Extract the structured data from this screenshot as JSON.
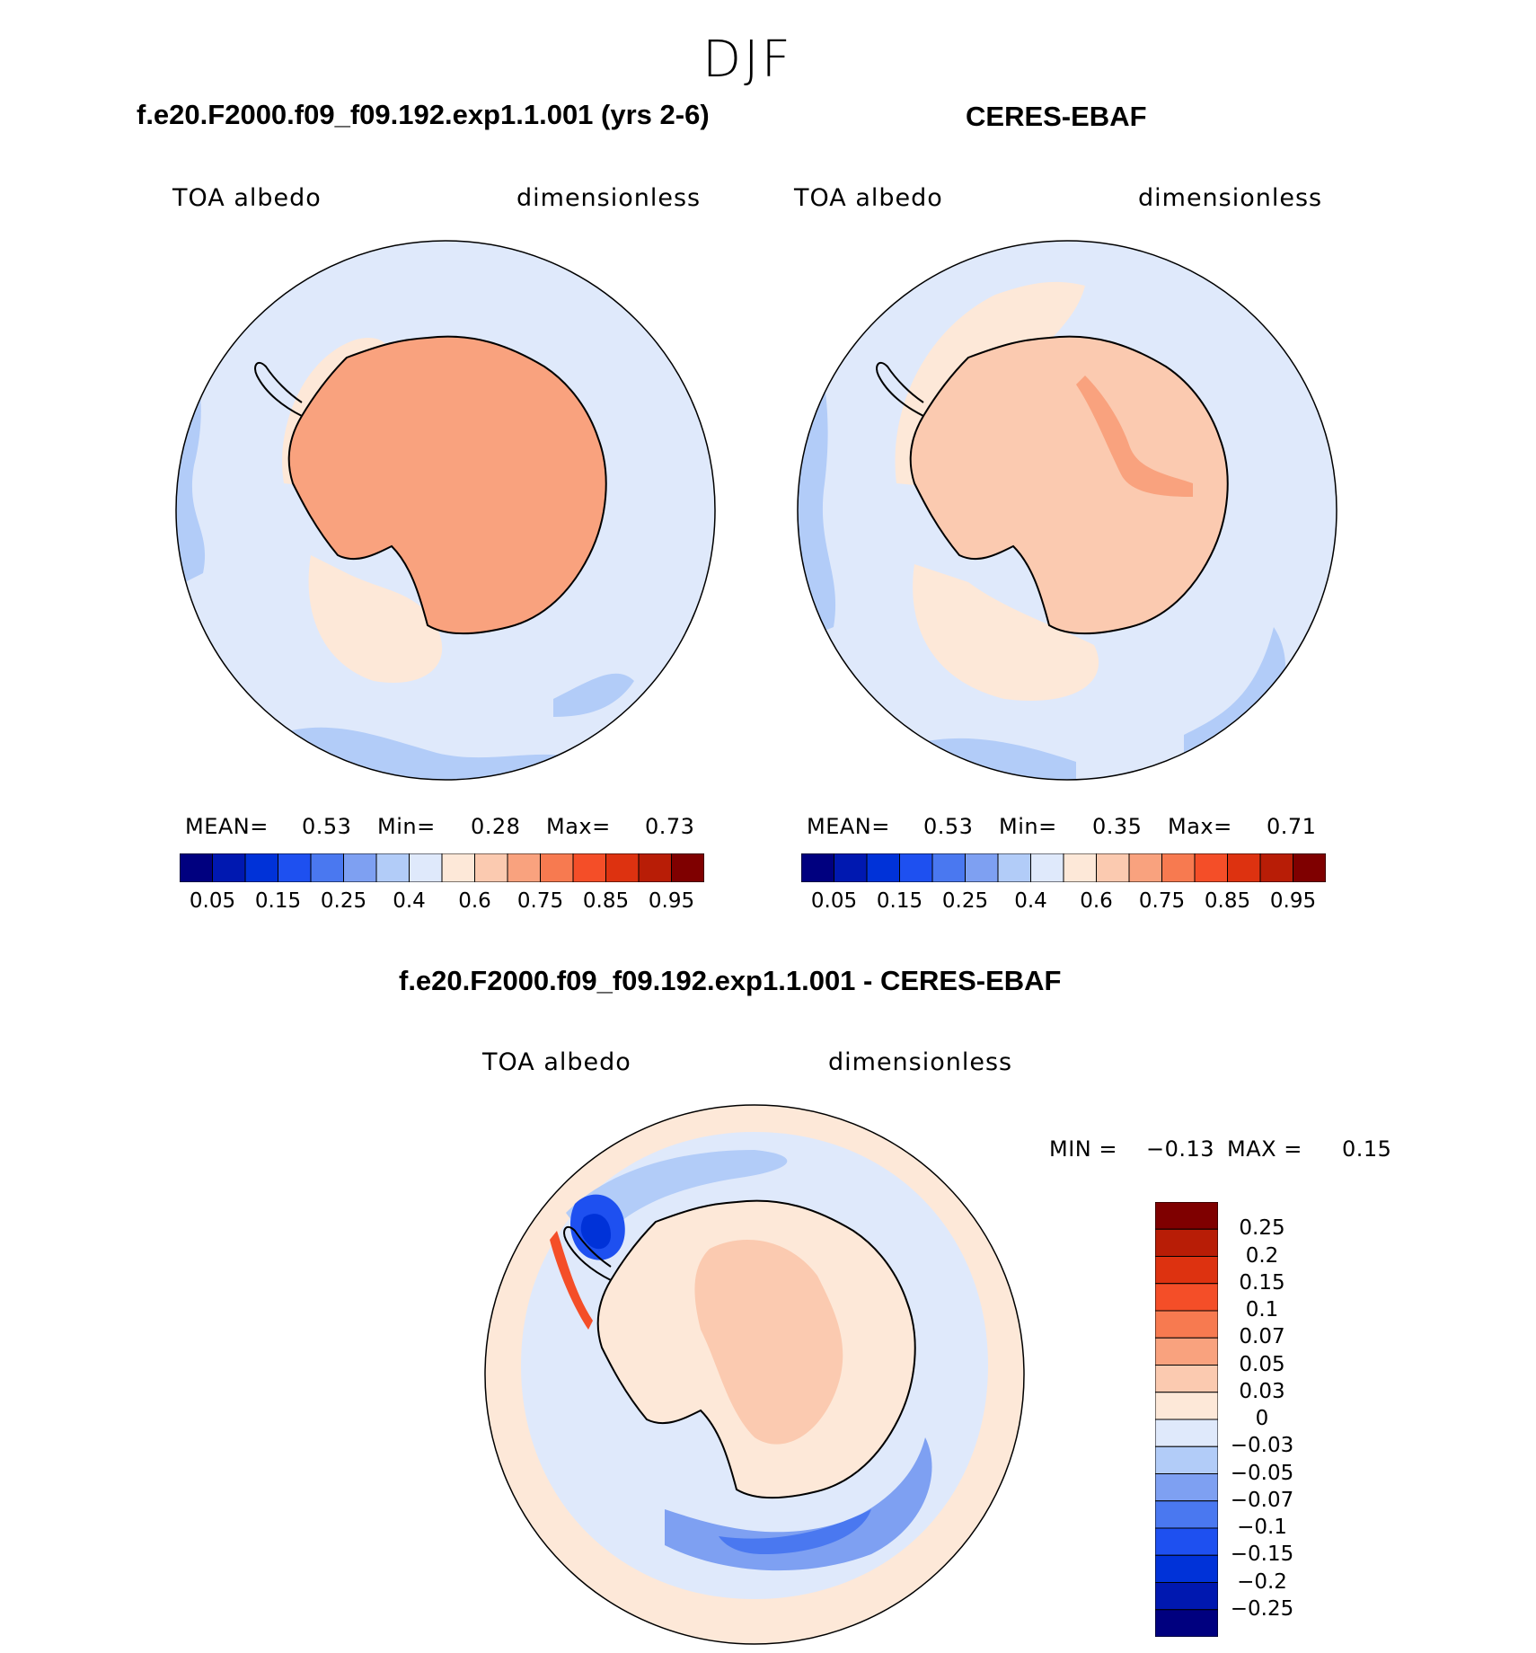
{
  "figure": {
    "season": "DJF",
    "colors": {
      "seq": [
        "#00007f",
        "#0018b0",
        "#0032d8",
        "#1e50f0",
        "#4a78f0",
        "#7ea0f2",
        "#b2ccf8",
        "#dfe9fb",
        "#fde8d8",
        "#fbcab0",
        "#f9a27e",
        "#f77a50",
        "#f44e28",
        "#dd3210",
        "#b81d06",
        "#7f0000"
      ],
      "diff": [
        "#7f0000",
        "#b81d06",
        "#dd3210",
        "#f44e28",
        "#f77a50",
        "#f9a27e",
        "#fbcab0",
        "#fde8d8",
        "#dfe9fb",
        "#b2ccf8",
        "#7ea0f2",
        "#4a78f0",
        "#1e50f0",
        "#0032d8",
        "#0018b0",
        "#00007f"
      ],
      "land_outline": "#000000"
    }
  },
  "panels": {
    "model": {
      "title": "f.e20.F2000.f09_f09.192.exp1.1.001 (yrs 2-6)",
      "variable": "TOA albedo",
      "units": "dimensionless",
      "mean_label": "MEAN=",
      "mean": "0.53",
      "min_label": "Min=",
      "min": "0.28",
      "max_label": "Max=",
      "max": "0.73"
    },
    "obs": {
      "title": "CERES-EBAF",
      "variable": "TOA albedo",
      "units": "dimensionless",
      "mean_label": "MEAN=",
      "mean": "0.53",
      "min_label": "Min=",
      "min": "0.35",
      "max_label": "Max=",
      "max": "0.71"
    },
    "diff": {
      "title": "f.e20.F2000.f09_f09.192.exp1.1.001 - CERES-EBAF",
      "variable": "TOA albedo",
      "units": "dimensionless",
      "min_label": "MIN =",
      "min": "−0.13",
      "max_label": "MAX =",
      "max": "0.15"
    }
  },
  "chart_data": [
    {
      "type": "heatmap",
      "title": "f.e20.F2000.f09_f09.192.exp1.1.001 (yrs 2-6)",
      "projection": "south-polar-stereographic",
      "variable": "TOA albedo",
      "units": "dimensionless",
      "mean": 0.53,
      "min": 0.28,
      "max": 0.73,
      "colorbar_ticks": [
        "0.05",
        "0.15",
        "0.25",
        "0.4",
        "0.6",
        "0.75",
        "0.85",
        "0.95"
      ],
      "colorbar_levels": 16,
      "colorbar_placement": "bottom"
    },
    {
      "type": "heatmap",
      "title": "CERES-EBAF",
      "projection": "south-polar-stereographic",
      "variable": "TOA albedo",
      "units": "dimensionless",
      "mean": 0.53,
      "min": 0.35,
      "max": 0.71,
      "colorbar_ticks": [
        "0.05",
        "0.15",
        "0.25",
        "0.4",
        "0.6",
        "0.75",
        "0.85",
        "0.95"
      ],
      "colorbar_levels": 16,
      "colorbar_placement": "bottom"
    },
    {
      "type": "heatmap",
      "title": "f.e20.F2000.f09_f09.192.exp1.1.001 - CERES-EBAF",
      "projection": "south-polar-stereographic",
      "variable": "TOA albedo",
      "units": "dimensionless",
      "min": -0.13,
      "max": 0.15,
      "colorbar_ticks": [
        "0.25",
        "0.2",
        "0.15",
        "0.1",
        "0.07",
        "0.05",
        "0.03",
        "0",
        "−0.03",
        "−0.05",
        "−0.07",
        "−0.1",
        "−0.15",
        "−0.2",
        "−0.25"
      ],
      "colorbar_levels": 16,
      "colorbar_placement": "right"
    }
  ]
}
